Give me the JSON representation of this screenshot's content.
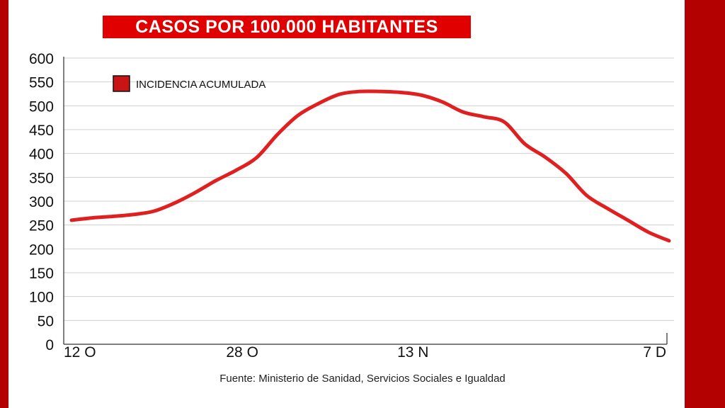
{
  "chart_data": {
    "type": "line",
    "title": "CASOS POR 100.000 HABITANTES",
    "source": "Fuente: Ministerio de Sanidad, Servicios Sociales e Igualdad",
    "legend_label": "INCIDENCIA ACUMULADA",
    "legend_position": "top-left",
    "ylim": [
      0,
      600
    ],
    "yticks": [
      0,
      50,
      100,
      150,
      200,
      250,
      300,
      350,
      400,
      450,
      500,
      550,
      600
    ],
    "xtick_labels": [
      "12 O",
      "28 O",
      "13 N",
      "7 D"
    ],
    "xtick_index": [
      0,
      16,
      32,
      56
    ],
    "grid": true,
    "series": [
      {
        "color": "#e02020",
        "values": [
          260,
          265,
          268,
          272,
          279,
          296,
          318,
          343,
          365,
          392,
          440,
          480,
          505,
          524,
          530,
          530,
          528,
          522,
          508,
          487,
          477,
          466,
          420,
          392,
          358,
          312,
          285,
          260,
          235,
          217
        ]
      }
    ]
  },
  "colors": {
    "accent": "#e00000",
    "frame": "#b30000",
    "line": "#e02020",
    "grid": "#d0d0d0"
  }
}
